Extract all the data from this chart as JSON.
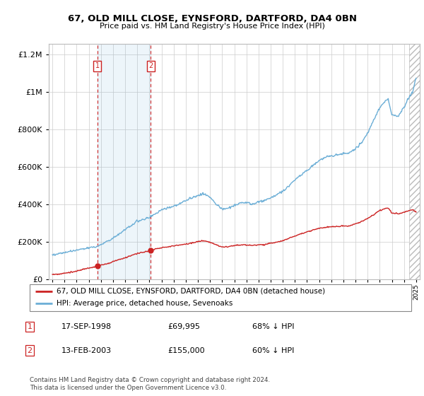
{
  "title": "67, OLD MILL CLOSE, EYNSFORD, DARTFORD, DA4 0BN",
  "subtitle": "Price paid vs. HM Land Registry's House Price Index (HPI)",
  "legend_line1": "67, OLD MILL CLOSE, EYNSFORD, DARTFORD, DA4 0BN (detached house)",
  "legend_line2": "HPI: Average price, detached house, Sevenoaks",
  "table": [
    {
      "num": "1",
      "date": "17-SEP-1998",
      "price": "£69,995",
      "pct": "68% ↓ HPI"
    },
    {
      "num": "2",
      "date": "13-FEB-2003",
      "price": "£155,000",
      "pct": "60% ↓ HPI"
    }
  ],
  "footnote": "Contains HM Land Registry data © Crown copyright and database right 2024.\nThis data is licensed under the Open Government Licence v3.0.",
  "sale1_year": 1998.71,
  "sale1_price": 69995,
  "sale2_year": 2003.12,
  "sale2_price": 155000,
  "hpi_color": "#6baed6",
  "sale_color": "#cc2222",
  "ylim_max": 1260000,
  "xmin": 1994.7,
  "xmax": 2025.3
}
